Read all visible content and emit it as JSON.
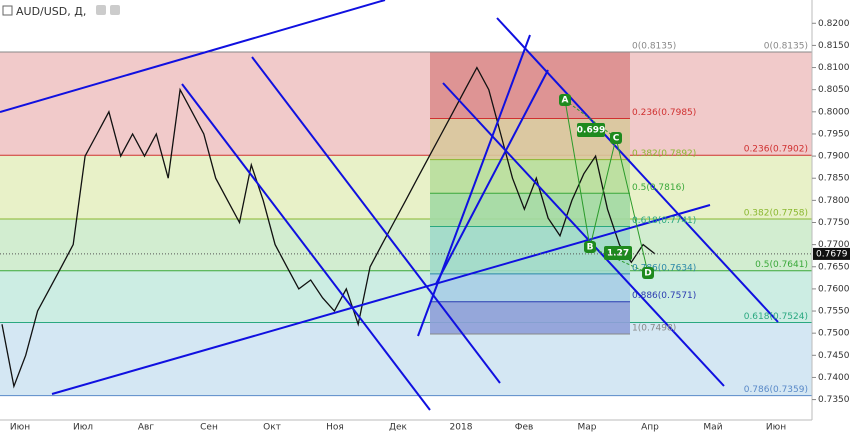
{
  "chart_data": {
    "type": "line",
    "title": "AUD/USD, Д,",
    "values": [
      0.752,
      0.738,
      0.745,
      0.755,
      0.76,
      0.765,
      0.77,
      0.79,
      0.795,
      0.8,
      0.79,
      0.795,
      0.79,
      0.795,
      0.785,
      0.805,
      0.8,
      0.795,
      0.785,
      0.78,
      0.775,
      0.788,
      0.78,
      0.77,
      0.765,
      0.76,
      0.762,
      0.758,
      0.755,
      0.76,
      0.752,
      0.765,
      0.77,
      0.775,
      0.78,
      0.785,
      0.79,
      0.795,
      0.8,
      0.805,
      0.81,
      0.805,
      0.795,
      0.785,
      0.778,
      0.785,
      0.776,
      0.772,
      0.78,
      0.786,
      0.79,
      0.778,
      0.77,
      0.766,
      0.77,
      0.7679
    ],
    "color": "#111111",
    "xticks": [
      "Июн",
      "Июл",
      "Авг",
      "Сен",
      "Окт",
      "Ноя",
      "Дек",
      "2018",
      "Фев",
      "Мар",
      "Апр",
      "Май",
      "Июн"
    ],
    "ylim": [
      0.734,
      0.823
    ],
    "yticks": [
      {
        "value": 0.735,
        "label": "0.7350"
      },
      {
        "value": 0.74,
        "label": "0.7400"
      },
      {
        "value": 0.745,
        "label": "0.7450"
      },
      {
        "value": 0.75,
        "label": "0.7500"
      },
      {
        "value": 0.755,
        "label": "0.7550"
      },
      {
        "value": 0.76,
        "label": "0.7600"
      },
      {
        "value": 0.765,
        "label": "0.7650"
      },
      {
        "value": 0.77,
        "label": "0.7700"
      },
      {
        "value": 0.775,
        "label": "0.7750"
      },
      {
        "value": 0.78,
        "label": "0.7800"
      },
      {
        "value": 0.785,
        "label": "0.7850"
      },
      {
        "value": 0.79,
        "label": "0.7900"
      },
      {
        "value": 0.795,
        "label": "0.7950"
      },
      {
        "value": 0.8,
        "label": "0.8000"
      },
      {
        "value": 0.805,
        "label": "0.8050"
      },
      {
        "value": 0.81,
        "label": "0.8100"
      },
      {
        "value": 0.815,
        "label": "0.8150"
      },
      {
        "value": 0.82,
        "label": "0.8200"
      }
    ],
    "last_price": {
      "value": 0.7679,
      "label": "0.7679"
    },
    "fib_large": {
      "levels": [
        {
          "value": 0.8135,
          "label": "0(0.8135)"
        },
        {
          "value": 0.7902,
          "label": "0.236(0.7902)"
        },
        {
          "value": 0.7758,
          "label": "0.382(0.7758)"
        },
        {
          "value": 0.7641,
          "label": "0.5(0.7641)"
        },
        {
          "value": 0.7524,
          "label": "0.618(0.7524)"
        },
        {
          "value": 0.7359,
          "label": "0.786(0.7359)"
        }
      ],
      "line_colors": [
        "#888888",
        "#d03030",
        "#8ab830",
        "#3aa83a",
        "#2aa880",
        "#5a8ac8"
      ],
      "band_colors": [
        "#f0c4c4",
        "#e6efc2",
        "#cdebcb",
        "#c6ebe0",
        "#cfe4f2"
      ]
    },
    "fib_small": {
      "levels": [
        {
          "value": 0.8135,
          "label": "0(0.8135)"
        },
        {
          "value": 0.7985,
          "label": "0.236(0.7985)"
        },
        {
          "value": 0.7892,
          "label": "0.382(0.7892)"
        },
        {
          "value": 0.7816,
          "label": "0.5(0.7816)"
        },
        {
          "value": 0.7741,
          "label": "0.618(0.7741)"
        },
        {
          "value": 0.7634,
          "label": "0.786(0.7634)"
        },
        {
          "value": 0.7571,
          "label": "0.886(0.7571)"
        },
        {
          "value": 0.7498,
          "label": "1(0.7498)"
        }
      ],
      "line_colors": [
        "#888888",
        "#d03030",
        "#8ab830",
        "#3aa83a",
        "#2aa880",
        "#2a88a8",
        "#2a3ab0",
        "#888888"
      ],
      "band_colors": [
        "#dc8e8e",
        "#d8c89c",
        "#b8de9c",
        "#a2d9a3",
        "#a0d9c9",
        "#a9cde6",
        "#8f9fd8"
      ]
    },
    "pattern": {
      "points": [
        "A",
        "B",
        "C",
        "D"
      ],
      "ratios": [
        "0.699",
        "1.27"
      ]
    }
  }
}
